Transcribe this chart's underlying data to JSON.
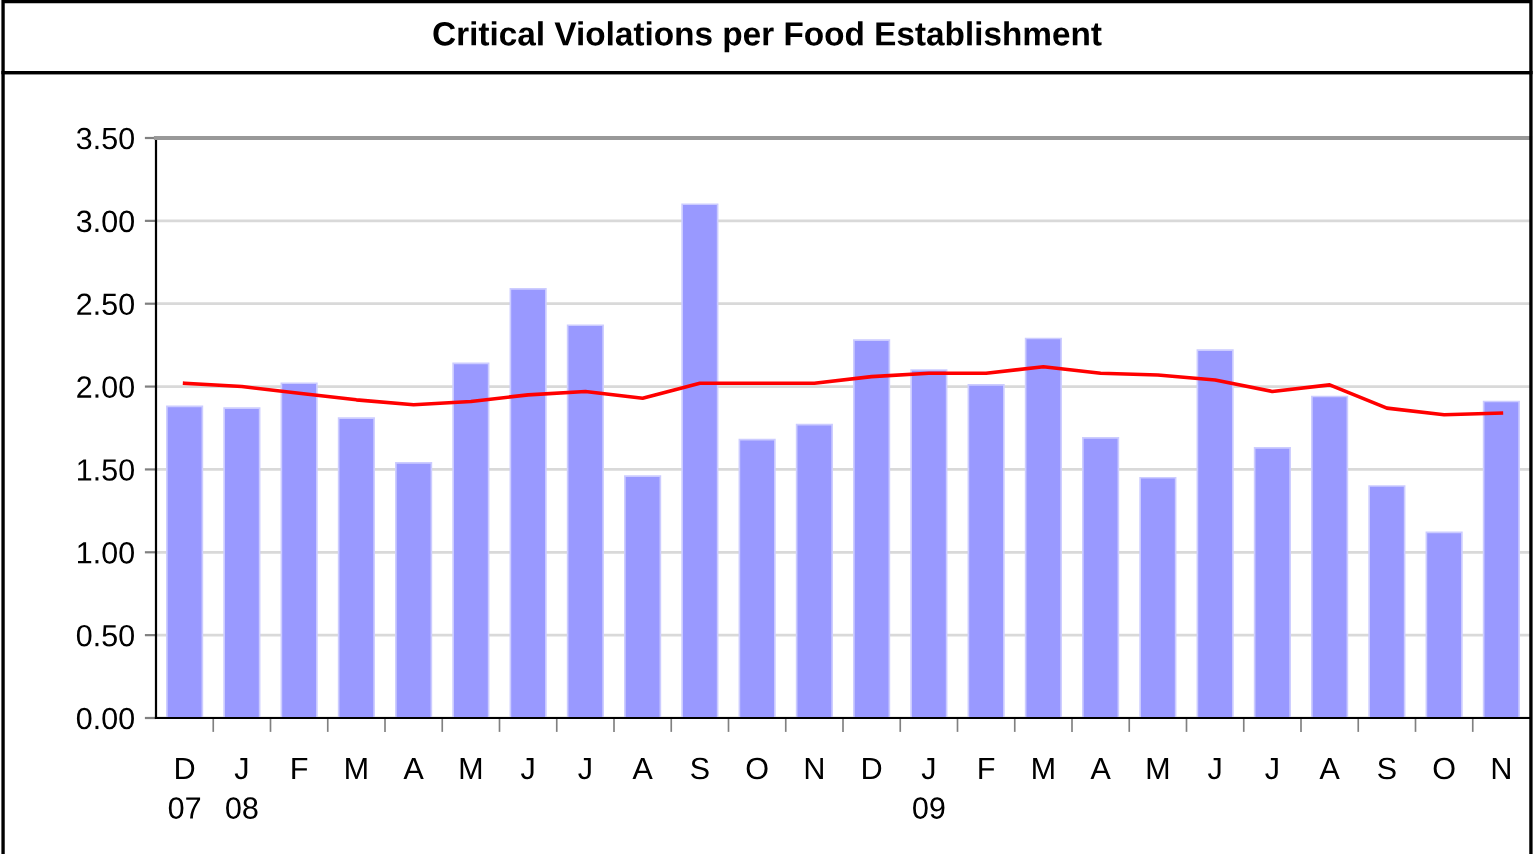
{
  "chart_data": {
    "type": "bar",
    "title": "Critical Violations per Food Establishment",
    "categories": [
      "D\n07",
      "J\n08",
      "F",
      "M",
      "A",
      "M",
      "J",
      "J",
      "A",
      "S",
      "O",
      "N",
      "D",
      "J\n09",
      "F",
      "M",
      "A",
      "M",
      "J",
      "J",
      "A",
      "S",
      "O",
      "N"
    ],
    "series": [
      {
        "color": "#9999ff",
        "values": [
          1.88,
          1.87,
          2.02,
          1.81,
          1.54,
          2.14,
          2.59,
          2.37,
          1.46,
          3.1,
          1.68,
          1.77,
          2.28,
          2.1,
          2.01,
          2.29,
          1.69,
          1.45,
          2.22,
          1.63,
          1.94,
          1.4,
          1.12,
          1.91
        ]
      },
      {
        "type": "line",
        "color": "#ff0000",
        "values": [
          2.02,
          2.0,
          1.96,
          1.92,
          1.89,
          1.91,
          1.95,
          1.97,
          1.93,
          2.02,
          2.02,
          2.02,
          2.06,
          2.08,
          2.08,
          2.12,
          2.08,
          2.07,
          2.04,
          1.97,
          2.01,
          1.87,
          1.83,
          1.84
        ]
      }
    ],
    "ylim": [
      0,
      3.5
    ],
    "yticks": [
      {
        "value": 0,
        "label": "0.00"
      },
      {
        "value": 0.5,
        "label": "0.50"
      },
      {
        "value": 1,
        "label": "1.00"
      },
      {
        "value": 1.5,
        "label": "1.50"
      },
      {
        "value": 2,
        "label": "2.00"
      },
      {
        "value": 2.5,
        "label": "2.50"
      },
      {
        "value": 3,
        "label": "3.00"
      },
      {
        "value": 3.5,
        "label": "3.50"
      }
    ],
    "grid": "y"
  }
}
